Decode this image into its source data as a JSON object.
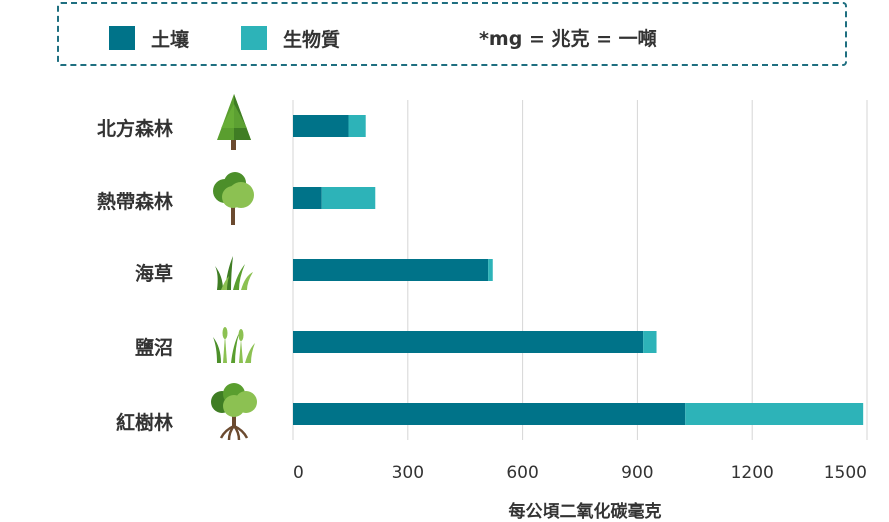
{
  "chart_data": {
    "type": "bar",
    "orientation": "horizontal",
    "stacked": true,
    "categories": [
      "北方森林",
      "熱帶森林",
      "海草",
      "鹽沼",
      "紅樹林"
    ],
    "series": [
      {
        "name": "土壤",
        "values": [
          145,
          75,
          510,
          915,
          1025
        ],
        "color": "#007389"
      },
      {
        "name": "生物質",
        "values": [
          45,
          140,
          12,
          35,
          465
        ],
        "color": "#2db3b8"
      }
    ],
    "xlabel": "每公頃二氧化碳毫克",
    "xlim": [
      0,
      1500
    ],
    "xticks": [
      0,
      300,
      600,
      900,
      1200,
      1500
    ],
    "grid": true,
    "legend_position": "top",
    "note": "*mg = 兆克 = 一噸"
  },
  "icons": [
    "conifer-tree-icon",
    "broadleaf-tree-icon",
    "seagrass-icon",
    "salt-marsh-grass-icon",
    "mangrove-tree-icon"
  ]
}
